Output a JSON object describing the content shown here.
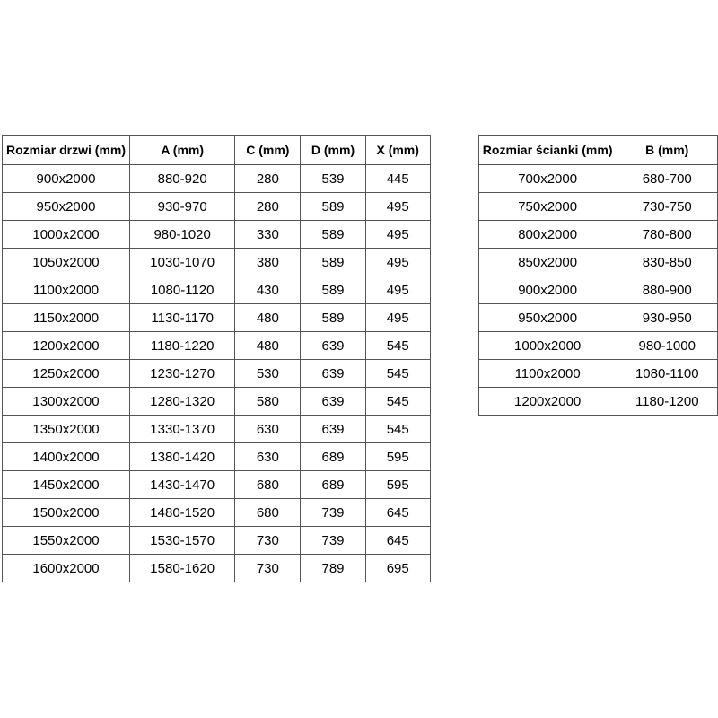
{
  "page": {
    "background_color": "#ffffff",
    "border_color": "#555555",
    "text_color": "#000000"
  },
  "door_table": {
    "headers": [
      "Rozmiar drzwi (mm)",
      "A (mm)",
      "C (mm)",
      "D (mm)",
      "X (mm)"
    ],
    "rows": [
      [
        "900x2000",
        "880-920",
        "280",
        "539",
        "445"
      ],
      [
        "950x2000",
        "930-970",
        "280",
        "589",
        "495"
      ],
      [
        "1000x2000",
        "980-1020",
        "330",
        "589",
        "495"
      ],
      [
        "1050x2000",
        "1030-1070",
        "380",
        "589",
        "495"
      ],
      [
        "1100x2000",
        "1080-1120",
        "430",
        "589",
        "495"
      ],
      [
        "1150x2000",
        "1130-1170",
        "480",
        "589",
        "495"
      ],
      [
        "1200x2000",
        "1180-1220",
        "480",
        "639",
        "545"
      ],
      [
        "1250x2000",
        "1230-1270",
        "530",
        "639",
        "545"
      ],
      [
        "1300x2000",
        "1280-1320",
        "580",
        "639",
        "545"
      ],
      [
        "1350x2000",
        "1330-1370",
        "630",
        "639",
        "545"
      ],
      [
        "1400x2000",
        "1380-1420",
        "630",
        "689",
        "595"
      ],
      [
        "1450x2000",
        "1430-1470",
        "680",
        "689",
        "595"
      ],
      [
        "1500x2000",
        "1480-1520",
        "680",
        "739",
        "645"
      ],
      [
        "1550x2000",
        "1530-1570",
        "730",
        "739",
        "645"
      ],
      [
        "1600x2000",
        "1580-1620",
        "730",
        "789",
        "695"
      ]
    ]
  },
  "wall_table": {
    "headers": [
      "Rozmiar ścianki (mm)",
      "B (mm)"
    ],
    "rows": [
      [
        "700x2000",
        "680-700"
      ],
      [
        "750x2000",
        "730-750"
      ],
      [
        "800x2000",
        "780-800"
      ],
      [
        "850x2000",
        "830-850"
      ],
      [
        "900x2000",
        "880-900"
      ],
      [
        "950x2000",
        "930-950"
      ],
      [
        "1000x2000",
        "980-1000"
      ],
      [
        "1100x2000",
        "1080-1100"
      ],
      [
        "1200x2000",
        "1180-1200"
      ]
    ]
  }
}
